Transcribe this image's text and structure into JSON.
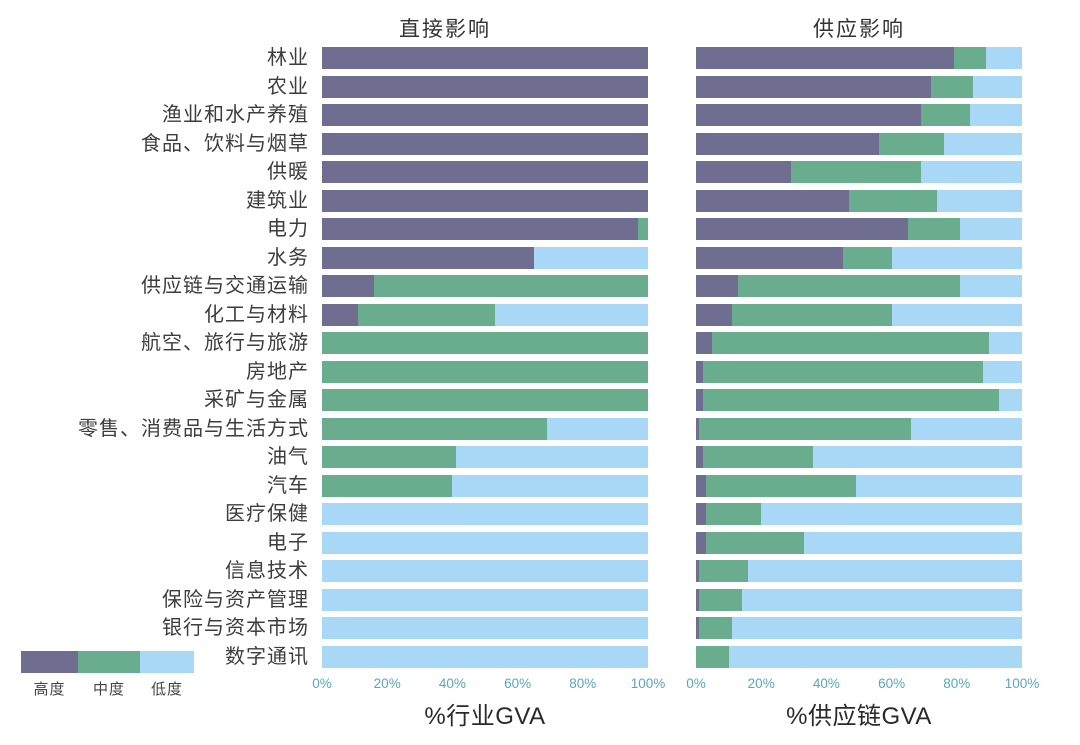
{
  "figure": {
    "panel_titles": {
      "left": "直接影响",
      "right": "供应影响"
    },
    "axis_titles": {
      "left": "%行业GVA",
      "right": "%供应链GVA"
    }
  },
  "legend": {
    "items": [
      {
        "label": "高度",
        "color": "#6f6d90"
      },
      {
        "label": "中度",
        "color": "#6aac8e"
      },
      {
        "label": "低度",
        "color": "#a8d8f6"
      }
    ]
  },
  "chart_data": {
    "type": "bar",
    "orientation": "horizontal",
    "stacked": true,
    "unit": "percent of GVA",
    "xlim": [
      0,
      100
    ],
    "x_ticks": [
      "0%",
      "20%",
      "40%",
      "60%",
      "80%",
      "100%"
    ],
    "grid": false,
    "legend_position": "bottom-left",
    "categories": [
      "林业",
      "农业",
      "渔业和水产养殖",
      "食品、饮料与烟草",
      "供暖",
      "建筑业",
      "电力",
      "水务",
      "供应链与交通运输",
      "化工与材料",
      "航空、旅行与旅游",
      "房地产",
      "采矿与金属",
      "零售、消费品与生活方式",
      "油气",
      "汽车",
      "医疗保健",
      "电子",
      "信息技术",
      "保险与资产管理",
      "银行与资本市场",
      "数字通讯"
    ],
    "panels": [
      {
        "title": "直接影响",
        "xlabel": "%行业GVA",
        "series": [
          {
            "name": "高度",
            "color": "#6f6d90",
            "values": [
              100,
              100,
              100,
              100,
              100,
              100,
              97,
              65,
              16,
              11,
              0,
              0,
              0,
              0,
              0,
              0,
              0,
              0,
              0,
              0,
              0,
              0
            ]
          },
          {
            "name": "中度",
            "color": "#6aac8e",
            "values": [
              0,
              0,
              0,
              0,
              0,
              0,
              3,
              0,
              84,
              42,
              100,
              100,
              100,
              69,
              41,
              40,
              0,
              0,
              0,
              0,
              0,
              0
            ]
          },
          {
            "name": "低度",
            "color": "#a8d8f6",
            "values": [
              0,
              0,
              0,
              0,
              0,
              0,
              0,
              35,
              0,
              47,
              0,
              0,
              0,
              31,
              59,
              60,
              100,
              100,
              100,
              100,
              100,
              100
            ]
          }
        ]
      },
      {
        "title": "供应影响",
        "xlabel": "%供应链GVA",
        "series": [
          {
            "name": "高度",
            "color": "#6f6d90",
            "values": [
              79,
              72,
              69,
              56,
              29,
              47,
              65,
              45,
              13,
              11,
              5,
              2,
              2,
              1,
              2,
              3,
              3,
              3,
              1,
              1,
              1,
              0
            ]
          },
          {
            "name": "中度",
            "color": "#6aac8e",
            "values": [
              10,
              13,
              15,
              20,
              40,
              27,
              16,
              15,
              68,
              49,
              85,
              86,
              91,
              65,
              34,
              46,
              17,
              30,
              15,
              13,
              10,
              10
            ]
          },
          {
            "name": "低度",
            "color": "#a8d8f6",
            "values": [
              11,
              15,
              16,
              24,
              31,
              26,
              19,
              40,
              19,
              40,
              10,
              12,
              7,
              34,
              64,
              51,
              80,
              67,
              84,
              86,
              89,
              90
            ]
          }
        ]
      }
    ]
  }
}
